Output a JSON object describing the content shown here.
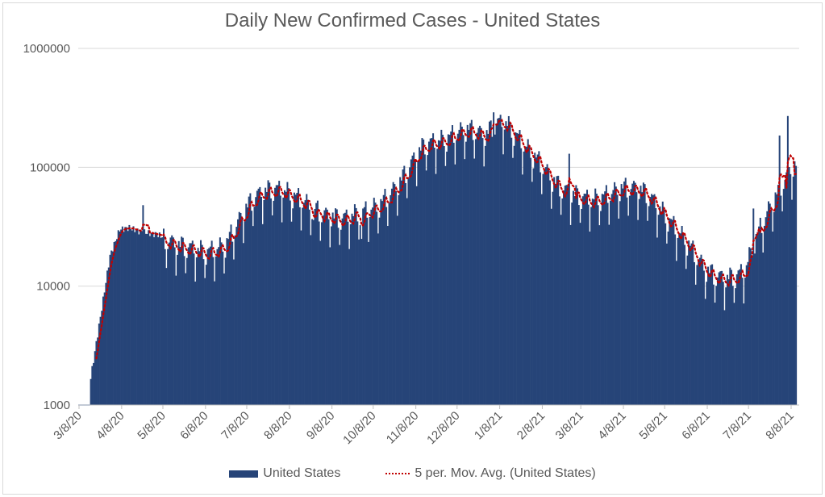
{
  "chart_data": {
    "type": "bar",
    "title": "Daily New Confirmed Cases - United States",
    "xlabel": "",
    "ylabel": "",
    "yscale": "log",
    "ylim": [
      1000,
      1000000
    ],
    "yticks": [
      "1000",
      "10000",
      "100000",
      "1000000"
    ],
    "grid": true,
    "legend_position": "bottom",
    "x_start": "2020-03-08",
    "x_end": "2021-08-12",
    "xticks": [
      "3/8/20",
      "4/8/20",
      "5/8/20",
      "6/8/20",
      "7/8/20",
      "8/8/20",
      "9/8/20",
      "10/8/20",
      "11/8/20",
      "12/8/20",
      "1/8/21",
      "2/8/21",
      "3/8/21",
      "4/8/21",
      "5/8/21",
      "6/8/21",
      "7/8/21",
      "8/8/21"
    ],
    "xtick_days": [
      0,
      31,
      61,
      92,
      122,
      153,
      184,
      214,
      245,
      275,
      306,
      337,
      365,
      396,
      426,
      457,
      487,
      518
    ],
    "series": [
      {
        "name": "United States",
        "kind": "bar",
        "color": "#264478",
        "first_day": 8,
        "weekly_anchor_values": [
          1700,
          5500,
          18000,
          30000,
          31000,
          29000,
          28000,
          27000,
          25000,
          23000,
          22000,
          21000,
          20000,
          21000,
          23000,
          32000,
          45000,
          58000,
          65000,
          68000,
          66000,
          60000,
          54000,
          48000,
          42000,
          40000,
          38000,
          40000,
          43000,
          45000,
          50000,
          60000,
          75000,
          100000,
          140000,
          165000,
          170000,
          180000,
          200000,
          215000,
          210000,
          190000,
          240000,
          250000,
          200000,
          160000,
          130000,
          105000,
          80000,
          68000,
          62000,
          58000,
          55000,
          57000,
          62000,
          68000,
          70000,
          68000,
          60000,
          48000,
          38000,
          30000,
          24000,
          18000,
          14000,
          12500,
          12000,
          12500,
          14000,
          25000,
          38000,
          55000,
          80000,
          105000,
          120000
        ],
        "weekly_dip_ratio": 0.55,
        "spikes": [
          {
            "day": 46,
            "value": 48000
          },
          {
            "day": 170,
            "value": 36000
          },
          {
            "day": 205,
            "value": 25000
          },
          {
            "day": 301,
            "value": 290000
          },
          {
            "day": 356,
            "value": 130000
          },
          {
            "day": 490,
            "value": 45000
          },
          {
            "day": 509,
            "value": 185000
          },
          {
            "day": 515,
            "value": 270000
          }
        ]
      },
      {
        "name": "5 per. Mov. Avg. (United States)",
        "kind": "line",
        "style": "dotted",
        "color": "#c00000",
        "period": 5
      }
    ]
  },
  "legend": {
    "items": [
      {
        "label": "United States"
      },
      {
        "label": "5 per. Mov. Avg. (United States)"
      }
    ]
  }
}
